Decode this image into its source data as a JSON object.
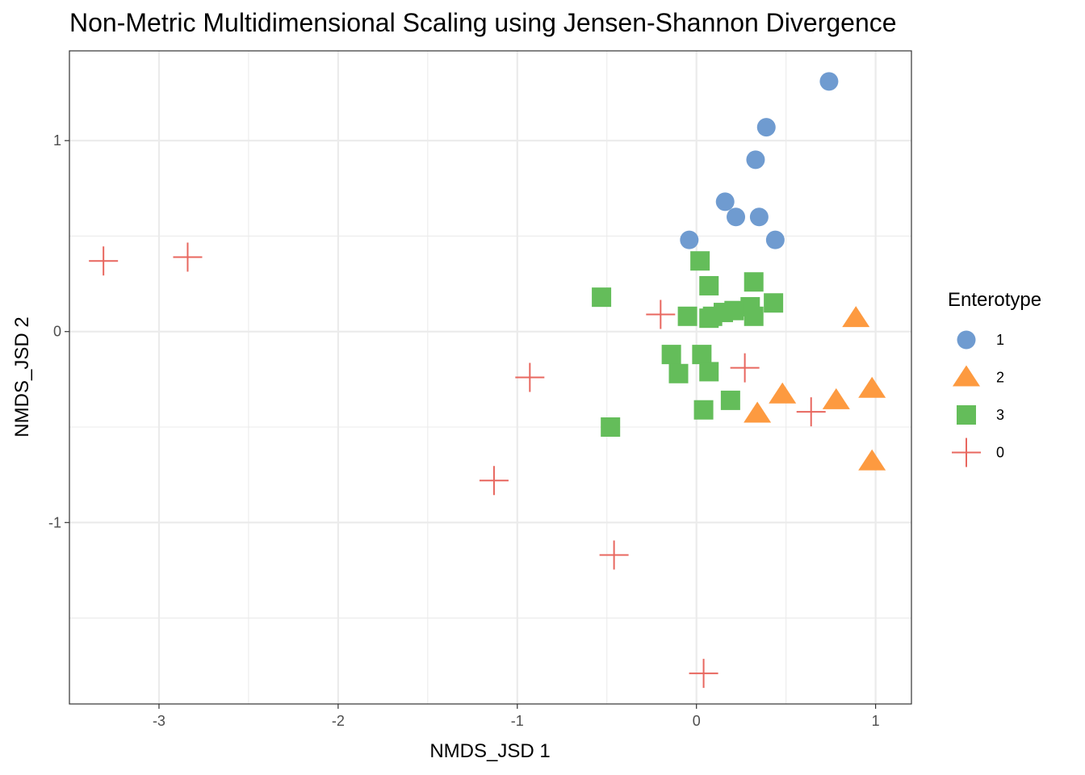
{
  "title": "Non-Metric Multidimensional Scaling using Jensen-Shannon Divergence",
  "chart_data": {
    "type": "scatter",
    "title": "Non-Metric Multidimensional Scaling using Jensen-Shannon Divergence",
    "xlabel": "NMDS_JSD 1",
    "ylabel": "NMDS_JSD 2",
    "xlim": [
      -3.5,
      1.2
    ],
    "ylim": [
      -1.95,
      1.47
    ],
    "xticks": [
      -3,
      -2,
      -1,
      0,
      1
    ],
    "yticks": [
      -1,
      0,
      1
    ],
    "grid": true,
    "legend": {
      "title": "Enterotype",
      "position": "right"
    },
    "series": [
      {
        "name": "1",
        "shape": "circle",
        "color": "#6f9bd0",
        "points": [
          [
            0.74,
            1.31
          ],
          [
            0.39,
            1.07
          ],
          [
            0.33,
            0.9
          ],
          [
            0.16,
            0.68
          ],
          [
            0.22,
            0.6
          ],
          [
            0.35,
            0.6
          ],
          [
            -0.04,
            0.48
          ],
          [
            0.44,
            0.48
          ]
        ]
      },
      {
        "name": "2",
        "shape": "triangle",
        "color": "#fd9a40",
        "points": [
          [
            0.89,
            0.07
          ],
          [
            0.98,
            -0.3
          ],
          [
            0.48,
            -0.33
          ],
          [
            0.78,
            -0.36
          ],
          [
            0.34,
            -0.43
          ],
          [
            0.98,
            -0.68
          ]
        ]
      },
      {
        "name": "3",
        "shape": "square",
        "color": "#64bd5a",
        "points": [
          [
            0.02,
            0.37
          ],
          [
            0.32,
            0.26
          ],
          [
            0.07,
            0.24
          ],
          [
            -0.53,
            0.18
          ],
          [
            0.43,
            0.15
          ],
          [
            0.3,
            0.13
          ],
          [
            0.21,
            0.11
          ],
          [
            0.15,
            0.1
          ],
          [
            0.09,
            0.08
          ],
          [
            0.32,
            0.08
          ],
          [
            -0.05,
            0.08
          ],
          [
            0.07,
            0.07
          ],
          [
            -0.14,
            -0.12
          ],
          [
            0.03,
            -0.12
          ],
          [
            -0.1,
            -0.22
          ],
          [
            0.07,
            -0.21
          ],
          [
            0.19,
            -0.36
          ],
          [
            0.04,
            -0.41
          ],
          [
            -0.48,
            -0.5
          ]
        ]
      },
      {
        "name": "0",
        "shape": "plus",
        "color": "#e8675f",
        "points": [
          [
            -3.31,
            0.37
          ],
          [
            -2.84,
            0.39
          ],
          [
            -0.2,
            0.09
          ],
          [
            -0.93,
            -0.24
          ],
          [
            0.27,
            -0.19
          ],
          [
            0.64,
            -0.42
          ],
          [
            -1.13,
            -0.78
          ],
          [
            -0.46,
            -1.17
          ],
          [
            0.04,
            -1.79
          ]
        ]
      }
    ]
  }
}
